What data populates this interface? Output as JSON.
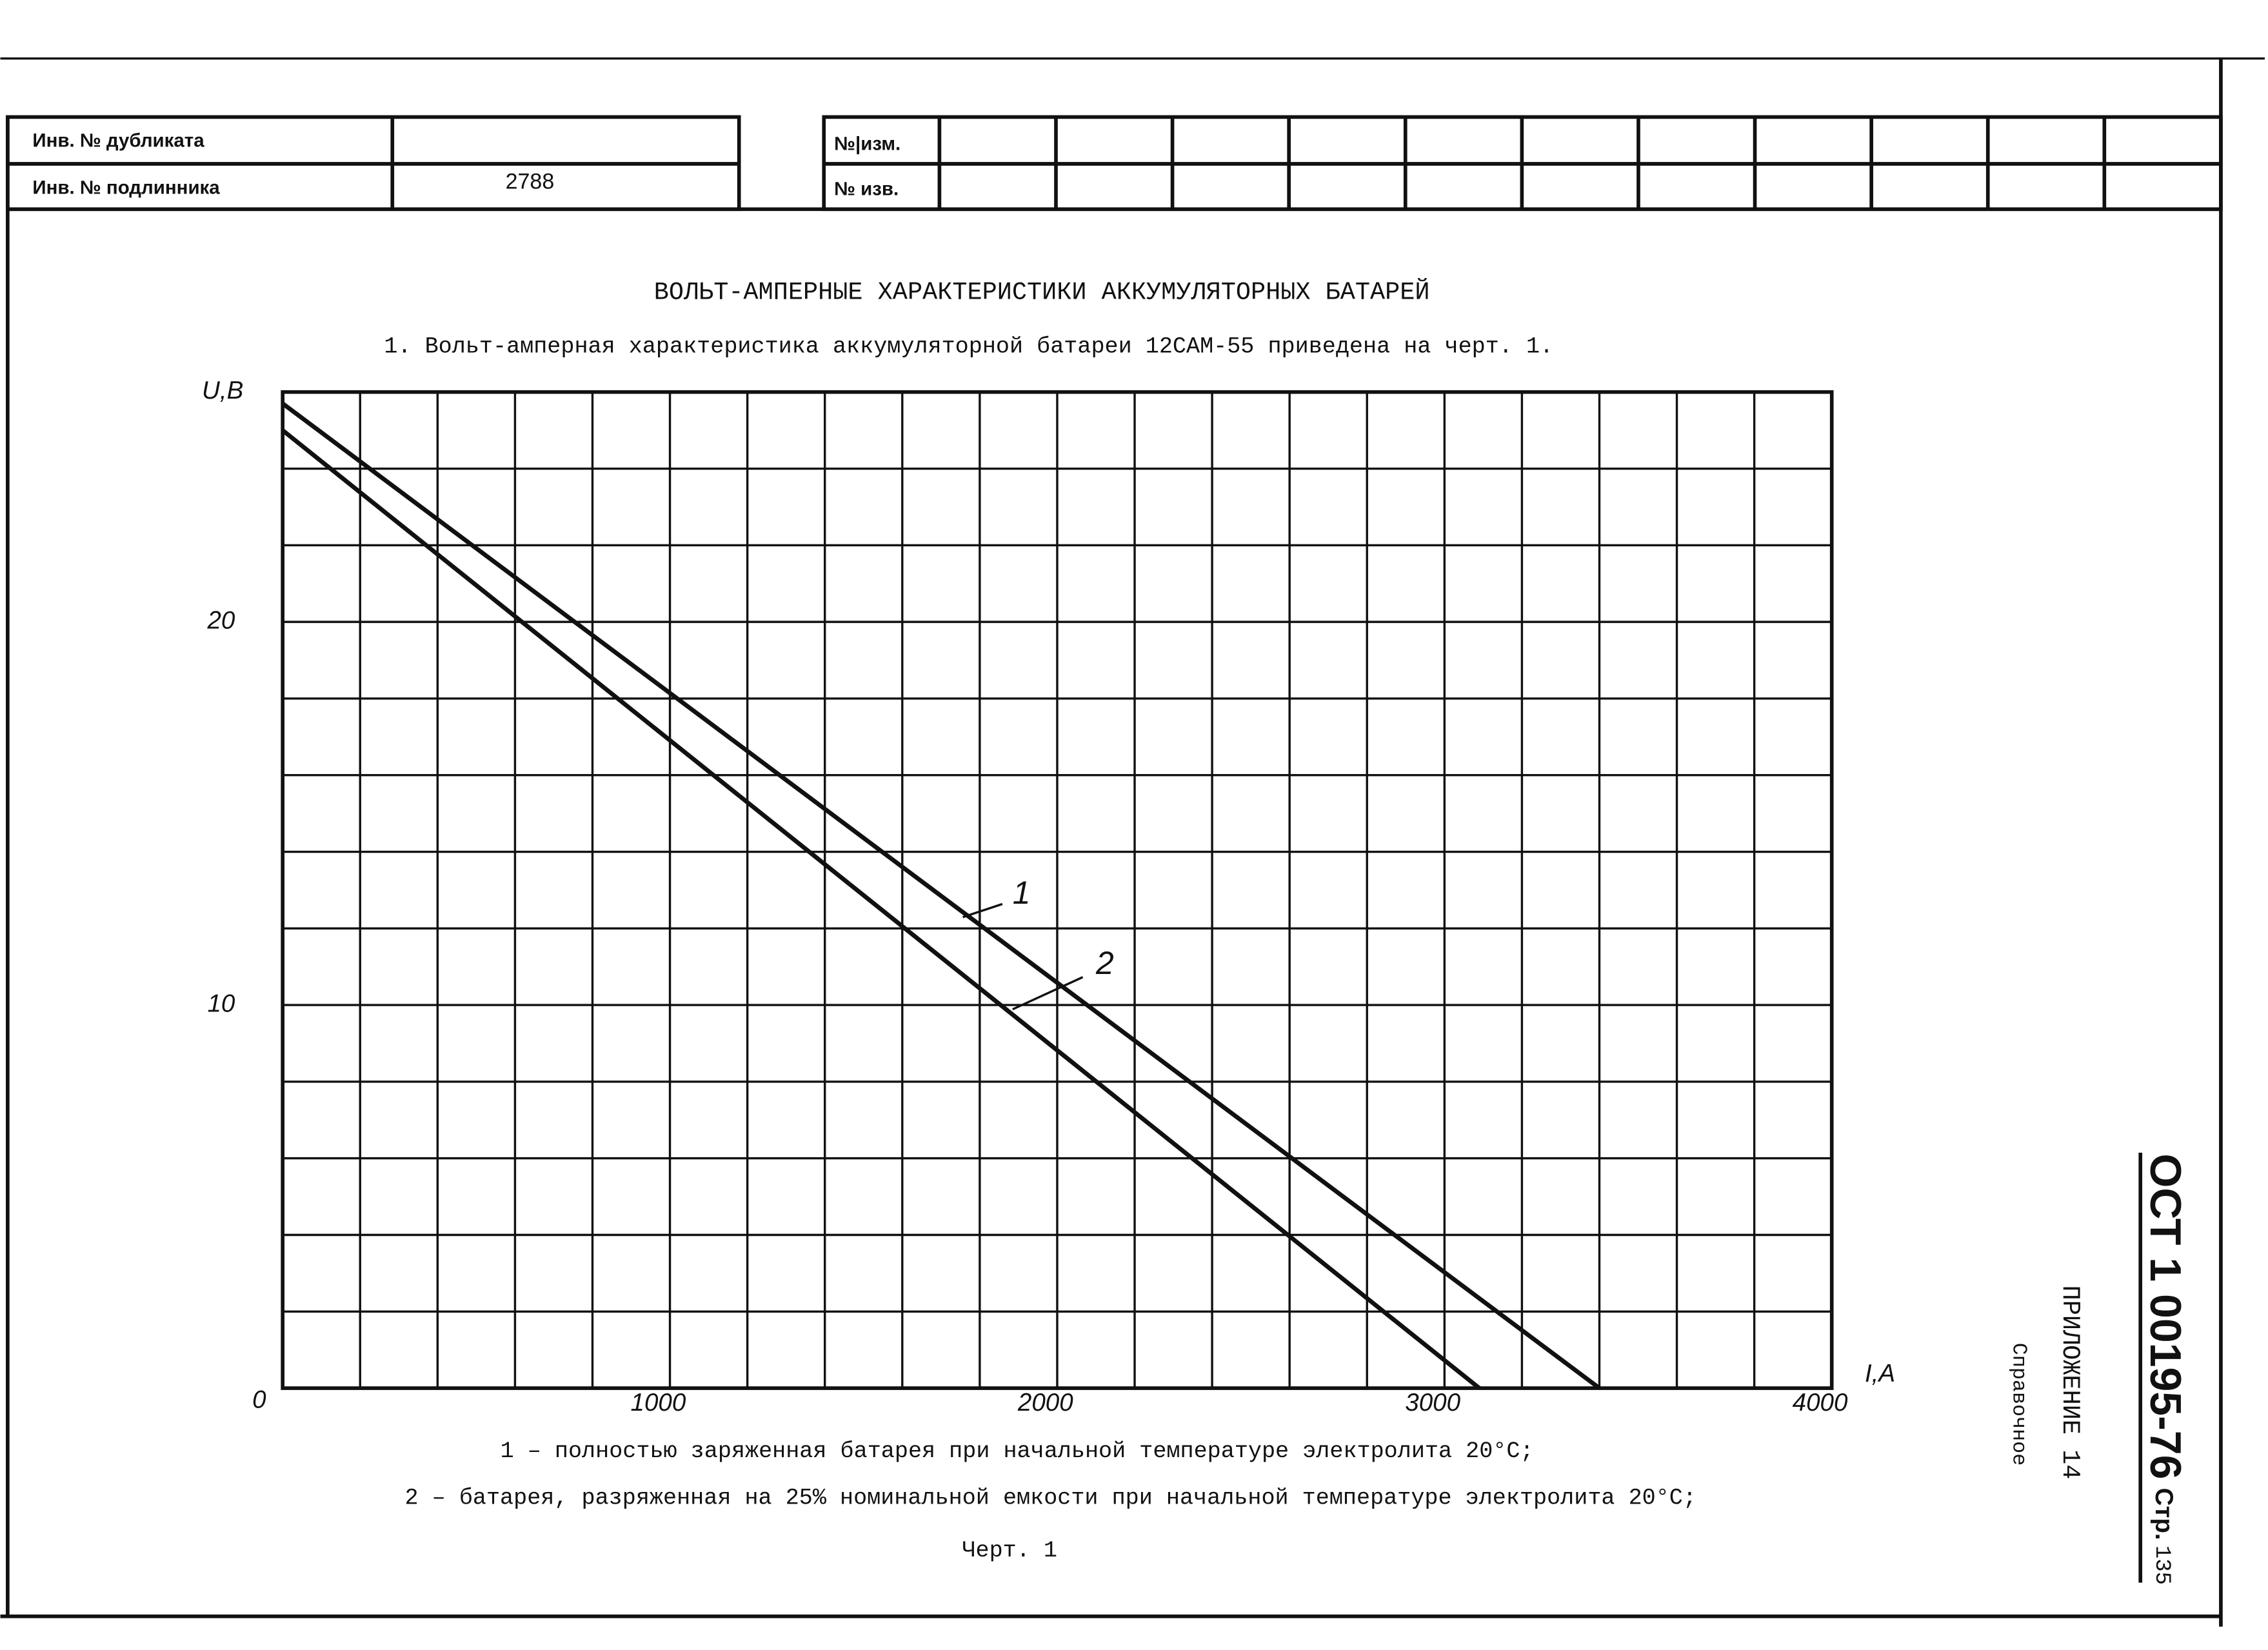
{
  "stamp": {
    "duplicate_label": "Инв. № дубликата",
    "original_label": "Инв. № подлинника",
    "original_number": 2788,
    "change_label": "№|изм.",
    "notice_label": "№ изв."
  },
  "document": {
    "heading": "ВОЛЬТ-АМПЕРНЫЕ ХАРАКТЕРИСТИКИ АККУМУЛЯТОРНЫХ БАТАРЕЙ",
    "intro": "1. Вольт-амперная характеристика аккумуляторной батареи 12САМ-55 приведена на черт. 1.",
    "notes": [
      "1 – полностью заряженная батарея при начальной температуре электролита 20°С;",
      "2 – батарея, разряженная на 25%   номинальной емкости при начальной температуре электролита 20°С;"
    ],
    "figure_caption": "Черт. 1",
    "standard": "ОСТ 1 00195-76",
    "page_label": "Стр.",
    "page_number": 135,
    "appendix": "ПРИЛОЖЕНИЕ 14",
    "appendix_type": "Справочное"
  },
  "chart_data": {
    "type": "line",
    "xlabel": "I,A",
    "ylabel": "U,В",
    "xlim": [
      0,
      4000
    ],
    "ylim": [
      0,
      26
    ],
    "xticks": [
      1000,
      2000,
      3000,
      4000
    ],
    "yticks": [
      0,
      10,
      20
    ],
    "grid": {
      "x_step": 200,
      "y_step": 2
    },
    "color": "#111111",
    "series": [
      {
        "name": "1",
        "x": [
          0,
          3400
        ],
        "values": [
          25.7,
          0
        ]
      },
      {
        "name": "2",
        "x": [
          0,
          3090
        ],
        "values": [
          25.0,
          0
        ]
      }
    ]
  }
}
